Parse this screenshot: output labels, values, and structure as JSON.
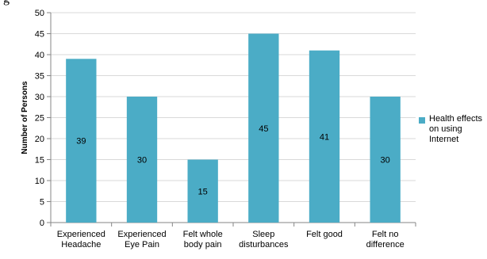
{
  "header_text": "g",
  "chart_data": {
    "type": "bar",
    "categories": [
      "Experienced\nHeadache",
      "Experienced\nEye Pain",
      "Felt whole\nbody pain",
      "Sleep\ndisturbances",
      "Felt good",
      "Felt no\ndifference"
    ],
    "series": [
      {
        "name": "Health effects on using Internet",
        "values": [
          39,
          30,
          15,
          45,
          41,
          30
        ]
      }
    ],
    "data_labels": [
      "39",
      "30",
      "15",
      "45",
      "41",
      "30"
    ],
    "ylabel": "Number of Persons",
    "xlabel": "",
    "ylim": [
      0,
      50
    ],
    "yticks": [
      0,
      5,
      10,
      15,
      20,
      25,
      30,
      35,
      40,
      45,
      50
    ],
    "grid": true,
    "legend_position": "right",
    "colors": {
      "bar": "#4BACC6",
      "grid": "#d9d9d9",
      "axis": "#868686"
    }
  }
}
